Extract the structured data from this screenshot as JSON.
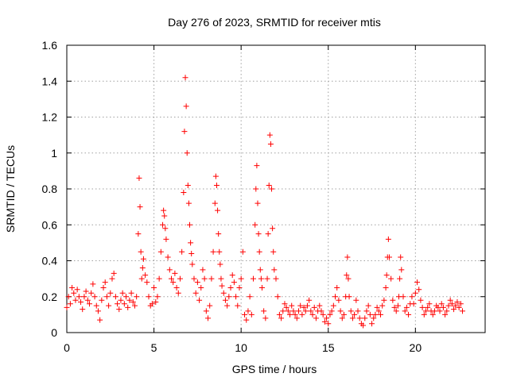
{
  "chart_data": {
    "type": "scatter",
    "title": "Day 276 of 2023, SRMTID for receiver mtis",
    "xlabel": "GPS time / hours",
    "ylabel": "SRMTID / TECUs",
    "xlim": [
      0,
      24
    ],
    "ylim": [
      0,
      1.6
    ],
    "xticks": [
      0,
      5,
      10,
      15,
      20
    ],
    "yticks": [
      0,
      0.2,
      0.4,
      0.6,
      0.8,
      1,
      1.2,
      1.4,
      1.6
    ],
    "xtick_labels": [
      "0",
      "5",
      "10",
      "15",
      "20"
    ],
    "ytick_labels": [
      "0",
      "0.2",
      "0.4",
      "0.6",
      "0.8",
      "1",
      "1.2",
      "1.4",
      "1.6"
    ],
    "grid": true,
    "marker": "plus",
    "series": [
      {
        "name": "SRMTID",
        "color": "#ff0000",
        "x": [
          0.0,
          0.1,
          0.2,
          0.3,
          0.4,
          0.5,
          0.6,
          0.7,
          0.8,
          0.9,
          1.0,
          1.1,
          1.2,
          1.3,
          1.4,
          1.5,
          1.6,
          1.7,
          1.8,
          1.9,
          2.0,
          2.1,
          2.2,
          2.3,
          2.4,
          2.5,
          2.6,
          2.7,
          2.8,
          2.9,
          3.0,
          3.1,
          3.2,
          3.3,
          3.4,
          3.5,
          3.6,
          3.7,
          3.8,
          3.9,
          4.0,
          4.1,
          4.15,
          4.2,
          4.25,
          4.3,
          4.35,
          4.4,
          4.5,
          4.6,
          4.7,
          4.8,
          4.9,
          5.0,
          5.1,
          5.2,
          5.3,
          5.4,
          5.5,
          5.55,
          5.6,
          5.65,
          5.7,
          5.8,
          5.9,
          6.0,
          6.1,
          6.2,
          6.3,
          6.4,
          6.5,
          6.6,
          6.7,
          6.75,
          6.8,
          6.85,
          6.9,
          6.95,
          7.0,
          7.05,
          7.1,
          7.15,
          7.2,
          7.3,
          7.4,
          7.5,
          7.6,
          7.7,
          7.8,
          7.9,
          8.0,
          8.1,
          8.2,
          8.3,
          8.4,
          8.5,
          8.55,
          8.6,
          8.65,
          8.7,
          8.75,
          8.8,
          8.85,
          8.9,
          9.0,
          9.1,
          9.2,
          9.3,
          9.4,
          9.5,
          9.6,
          9.7,
          9.8,
          9.9,
          10.0,
          10.1,
          10.2,
          10.3,
          10.4,
          10.5,
          10.6,
          10.7,
          10.8,
          10.85,
          10.9,
          10.95,
          11.0,
          11.05,
          11.1,
          11.15,
          11.2,
          11.3,
          11.4,
          11.5,
          11.55,
          11.6,
          11.65,
          11.7,
          11.75,
          11.8,
          11.85,
          11.9,
          12.0,
          12.1,
          12.2,
          12.3,
          12.4,
          12.5,
          12.6,
          12.7,
          12.8,
          12.9,
          13.0,
          13.1,
          13.2,
          13.3,
          13.4,
          13.5,
          13.6,
          13.7,
          13.8,
          13.9,
          14.0,
          14.1,
          14.2,
          14.3,
          14.4,
          14.5,
          14.6,
          14.7,
          14.8,
          14.9,
          15.0,
          15.1,
          15.2,
          15.3,
          15.4,
          15.5,
          15.6,
          15.7,
          15.8,
          15.9,
          16.0,
          16.05,
          16.1,
          16.15,
          16.2,
          16.3,
          16.4,
          16.5,
          16.6,
          16.7,
          16.8,
          16.9,
          17.0,
          17.1,
          17.2,
          17.3,
          17.4,
          17.5,
          17.6,
          17.7,
          17.8,
          17.9,
          18.0,
          18.1,
          18.2,
          18.3,
          18.35,
          18.4,
          18.45,
          18.5,
          18.6,
          18.7,
          18.8,
          18.9,
          19.0,
          19.05,
          19.1,
          19.15,
          19.2,
          19.3,
          19.4,
          19.5,
          19.6,
          19.7,
          19.8,
          19.9,
          20.0,
          20.1,
          20.2,
          20.3,
          20.4,
          20.5,
          20.6,
          20.7,
          20.8,
          20.9,
          21.0,
          21.1,
          21.2,
          21.3,
          21.4,
          21.5,
          21.6,
          21.7,
          21.8,
          21.9,
          22.0,
          22.1,
          22.2,
          22.3,
          22.4,
          22.5,
          22.6,
          22.7
        ],
        "y": [
          0.14,
          0.2,
          0.16,
          0.25,
          0.22,
          0.18,
          0.24,
          0.2,
          0.17,
          0.13,
          0.2,
          0.23,
          0.18,
          0.16,
          0.22,
          0.27,
          0.2,
          0.15,
          0.12,
          0.07,
          0.18,
          0.25,
          0.28,
          0.2,
          0.15,
          0.22,
          0.3,
          0.33,
          0.2,
          0.16,
          0.13,
          0.18,
          0.22,
          0.16,
          0.2,
          0.14,
          0.18,
          0.22,
          0.17,
          0.15,
          0.2,
          0.55,
          0.86,
          0.7,
          0.45,
          0.3,
          0.36,
          0.41,
          0.32,
          0.28,
          0.2,
          0.15,
          0.16,
          0.25,
          0.17,
          0.2,
          0.3,
          0.45,
          0.6,
          0.68,
          0.65,
          0.58,
          0.52,
          0.42,
          0.35,
          0.3,
          0.28,
          0.33,
          0.25,
          0.22,
          0.3,
          0.45,
          0.78,
          1.12,
          1.42,
          1.26,
          1.0,
          0.82,
          0.72,
          0.6,
          0.5,
          0.44,
          0.38,
          0.3,
          0.22,
          0.28,
          0.18,
          0.25,
          0.35,
          0.3,
          0.12,
          0.08,
          0.15,
          0.3,
          0.45,
          0.72,
          0.87,
          0.82,
          0.68,
          0.55,
          0.45,
          0.38,
          0.3,
          0.26,
          0.22,
          0.18,
          0.15,
          0.2,
          0.25,
          0.32,
          0.28,
          0.2,
          0.15,
          0.25,
          0.3,
          0.45,
          0.1,
          0.07,
          0.12,
          0.2,
          0.1,
          0.3,
          0.6,
          0.8,
          0.93,
          0.72,
          0.55,
          0.45,
          0.35,
          0.3,
          0.25,
          0.12,
          0.08,
          0.3,
          0.55,
          0.82,
          1.1,
          1.05,
          0.8,
          0.58,
          0.45,
          0.35,
          0.3,
          0.2,
          0.1,
          0.08,
          0.12,
          0.16,
          0.14,
          0.12,
          0.1,
          0.15,
          0.12,
          0.1,
          0.08,
          0.12,
          0.15,
          0.1,
          0.14,
          0.12,
          0.15,
          0.18,
          0.12,
          0.1,
          0.14,
          0.08,
          0.12,
          0.15,
          0.12,
          0.1,
          0.06,
          0.08,
          0.05,
          0.1,
          0.12,
          0.15,
          0.2,
          0.25,
          0.18,
          0.12,
          0.08,
          0.1,
          0.2,
          0.32,
          0.42,
          0.3,
          0.2,
          0.12,
          0.08,
          0.1,
          0.18,
          0.12,
          0.08,
          0.05,
          0.04,
          0.08,
          0.12,
          0.15,
          0.1,
          0.05,
          0.08,
          0.1,
          0.14,
          0.12,
          0.1,
          0.15,
          0.18,
          0.25,
          0.32,
          0.42,
          0.52,
          0.42,
          0.3,
          0.18,
          0.14,
          0.12,
          0.15,
          0.2,
          0.3,
          0.42,
          0.35,
          0.2,
          0.12,
          0.14,
          0.1,
          0.16,
          0.2,
          0.16,
          0.22,
          0.28,
          0.24,
          0.18,
          0.14,
          0.1,
          0.12,
          0.14,
          0.16,
          0.12,
          0.1,
          0.12,
          0.15,
          0.14,
          0.12,
          0.16,
          0.14,
          0.1,
          0.12,
          0.15,
          0.18,
          0.16,
          0.13,
          0.15,
          0.17,
          0.14,
          0.16,
          0.12
        ]
      }
    ]
  }
}
